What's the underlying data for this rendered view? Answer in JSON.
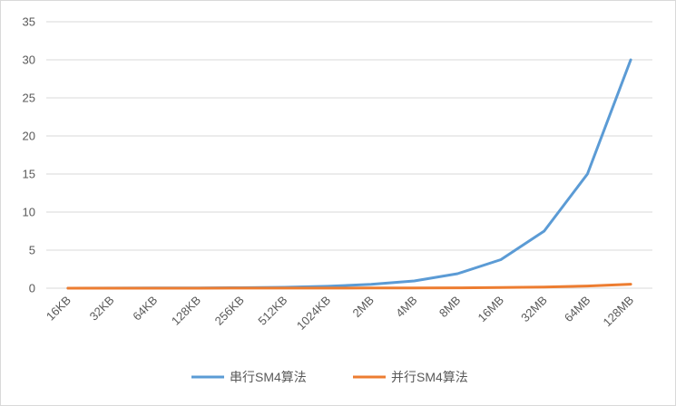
{
  "chart_data": {
    "type": "line",
    "title": "",
    "xlabel": "",
    "ylabel": "",
    "categories": [
      "16KB",
      "32KB",
      "64KB",
      "128KB",
      "256KB",
      "512KB",
      "1024KB",
      "2MB",
      "4MB",
      "8MB",
      "16MB",
      "32MB",
      "64MB",
      "128MB"
    ],
    "ylim": [
      0,
      35
    ],
    "yticks": [
      0,
      5,
      10,
      15,
      20,
      25,
      30,
      35
    ],
    "grid": true,
    "legend_position": "bottom",
    "series": [
      {
        "name": "串行SM4算法",
        "color": "#5b9bd5",
        "values": [
          0.005,
          0.01,
          0.02,
          0.03,
          0.06,
          0.12,
          0.25,
          0.5,
          0.95,
          1.9,
          3.75,
          7.5,
          15,
          30
        ]
      },
      {
        "name": "并行SM4算法",
        "color": "#ed7d31",
        "values": [
          0.0,
          0.0,
          0.0,
          0.0,
          0.01,
          0.01,
          0.01,
          0.02,
          0.03,
          0.05,
          0.08,
          0.15,
          0.28,
          0.52
        ]
      }
    ]
  }
}
